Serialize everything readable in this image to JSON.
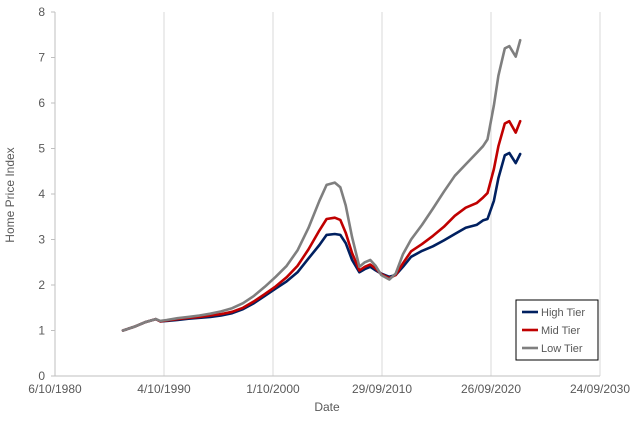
{
  "chart_data": {
    "type": "line",
    "title": "",
    "xlabel": "Date",
    "ylabel": "Home Price Index",
    "x_ticks": [
      "6/10/1980",
      "4/10/1990",
      "1/10/2000",
      "29/09/2010",
      "26/09/2020",
      "24/09/2030"
    ],
    "xlim": [
      "1980-10-06",
      "2030-09-24"
    ],
    "ylim": [
      0,
      8
    ],
    "y_ticks": [
      0,
      1,
      2,
      3,
      4,
      5,
      6,
      7,
      8
    ],
    "grid": "vertical",
    "legend_position": "bottom-right",
    "series": [
      {
        "name": "High Tier",
        "color": "#002060",
        "points": [
          [
            "1987-01",
            1.0
          ],
          [
            "1988-01",
            1.08
          ],
          [
            "1989-01",
            1.18
          ],
          [
            "1990-01",
            1.25
          ],
          [
            "1990-06",
            1.2
          ],
          [
            "1991-01",
            1.21
          ],
          [
            "1992-01",
            1.23
          ],
          [
            "1993-01",
            1.26
          ],
          [
            "1994-01",
            1.28
          ],
          [
            "1995-01",
            1.3
          ],
          [
            "1996-01",
            1.33
          ],
          [
            "1997-01",
            1.38
          ],
          [
            "1998-01",
            1.47
          ],
          [
            "1999-01",
            1.6
          ],
          [
            "2000-01",
            1.76
          ],
          [
            "2001-01",
            1.92
          ],
          [
            "2002-01",
            2.08
          ],
          [
            "2003-01",
            2.28
          ],
          [
            "2004-01",
            2.58
          ],
          [
            "2005-01",
            2.88
          ],
          [
            "2005-09",
            3.1
          ],
          [
            "2006-06",
            3.12
          ],
          [
            "2006-12",
            3.1
          ],
          [
            "2007-06",
            2.92
          ],
          [
            "2008-01",
            2.55
          ],
          [
            "2008-09",
            2.28
          ],
          [
            "2009-03",
            2.35
          ],
          [
            "2009-09",
            2.4
          ],
          [
            "2010-03",
            2.32
          ],
          [
            "2010-09",
            2.25
          ],
          [
            "2011-06",
            2.18
          ],
          [
            "2012-01",
            2.22
          ],
          [
            "2012-09",
            2.4
          ],
          [
            "2013-06",
            2.62
          ],
          [
            "2014-06",
            2.75
          ],
          [
            "2015-06",
            2.85
          ],
          [
            "2016-06",
            2.98
          ],
          [
            "2017-06",
            3.12
          ],
          [
            "2018-06",
            3.26
          ],
          [
            "2019-06",
            3.32
          ],
          [
            "2020-01",
            3.42
          ],
          [
            "2020-06",
            3.45
          ],
          [
            "2021-01",
            3.85
          ],
          [
            "2021-06",
            4.35
          ],
          [
            "2022-01",
            4.85
          ],
          [
            "2022-06",
            4.9
          ],
          [
            "2023-01",
            4.68
          ],
          [
            "2023-06",
            4.88
          ]
        ]
      },
      {
        "name": "Mid Tier",
        "color": "#C00000",
        "points": [
          [
            "1987-01",
            1.0
          ],
          [
            "1988-01",
            1.08
          ],
          [
            "1989-01",
            1.18
          ],
          [
            "1990-01",
            1.25
          ],
          [
            "1990-06",
            1.2
          ],
          [
            "1991-01",
            1.22
          ],
          [
            "1992-01",
            1.25
          ],
          [
            "1993-01",
            1.28
          ],
          [
            "1994-01",
            1.3
          ],
          [
            "1995-01",
            1.33
          ],
          [
            "1996-01",
            1.36
          ],
          [
            "1997-01",
            1.41
          ],
          [
            "1998-01",
            1.5
          ],
          [
            "1999-01",
            1.64
          ],
          [
            "2000-01",
            1.8
          ],
          [
            "2001-01",
            1.97
          ],
          [
            "2002-01",
            2.17
          ],
          [
            "2003-01",
            2.42
          ],
          [
            "2004-01",
            2.78
          ],
          [
            "2005-01",
            3.2
          ],
          [
            "2005-09",
            3.45
          ],
          [
            "2006-06",
            3.48
          ],
          [
            "2006-12",
            3.43
          ],
          [
            "2007-06",
            3.15
          ],
          [
            "2008-01",
            2.7
          ],
          [
            "2008-09",
            2.32
          ],
          [
            "2009-03",
            2.4
          ],
          [
            "2009-09",
            2.45
          ],
          [
            "2010-03",
            2.36
          ],
          [
            "2010-09",
            2.24
          ],
          [
            "2011-06",
            2.15
          ],
          [
            "2012-01",
            2.22
          ],
          [
            "2012-09",
            2.48
          ],
          [
            "2013-06",
            2.74
          ],
          [
            "2014-06",
            2.9
          ],
          [
            "2015-06",
            3.08
          ],
          [
            "2016-06",
            3.28
          ],
          [
            "2017-06",
            3.52
          ],
          [
            "2018-06",
            3.7
          ],
          [
            "2019-06",
            3.8
          ],
          [
            "2020-01",
            3.92
          ],
          [
            "2020-06",
            4.02
          ],
          [
            "2021-01",
            4.55
          ],
          [
            "2021-06",
            5.05
          ],
          [
            "2022-01",
            5.55
          ],
          [
            "2022-06",
            5.6
          ],
          [
            "2023-01",
            5.35
          ],
          [
            "2023-06",
            5.6
          ]
        ]
      },
      {
        "name": "Low Tier",
        "color": "#7F7F7F",
        "points": [
          [
            "1987-01",
            1.0
          ],
          [
            "1988-01",
            1.08
          ],
          [
            "1989-01",
            1.18
          ],
          [
            "1990-01",
            1.25
          ],
          [
            "1990-06",
            1.21
          ],
          [
            "1991-01",
            1.23
          ],
          [
            "1992-01",
            1.27
          ],
          [
            "1993-01",
            1.3
          ],
          [
            "1994-01",
            1.33
          ],
          [
            "1995-01",
            1.37
          ],
          [
            "1996-01",
            1.42
          ],
          [
            "1997-01",
            1.49
          ],
          [
            "1998-01",
            1.6
          ],
          [
            "1999-01",
            1.76
          ],
          [
            "2000-01",
            1.96
          ],
          [
            "2001-01",
            2.18
          ],
          [
            "2002-01",
            2.42
          ],
          [
            "2003-01",
            2.76
          ],
          [
            "2004-01",
            3.25
          ],
          [
            "2005-01",
            3.85
          ],
          [
            "2005-09",
            4.2
          ],
          [
            "2006-06",
            4.25
          ],
          [
            "2006-12",
            4.15
          ],
          [
            "2007-06",
            3.75
          ],
          [
            "2008-01",
            3.05
          ],
          [
            "2008-09",
            2.4
          ],
          [
            "2009-03",
            2.5
          ],
          [
            "2009-09",
            2.55
          ],
          [
            "2010-03",
            2.42
          ],
          [
            "2010-09",
            2.22
          ],
          [
            "2011-06",
            2.12
          ],
          [
            "2012-01",
            2.25
          ],
          [
            "2012-09",
            2.68
          ],
          [
            "2013-06",
            3.0
          ],
          [
            "2014-06",
            3.32
          ],
          [
            "2015-06",
            3.68
          ],
          [
            "2016-06",
            4.05
          ],
          [
            "2017-06",
            4.4
          ],
          [
            "2018-06",
            4.65
          ],
          [
            "2019-06",
            4.9
          ],
          [
            "2020-01",
            5.05
          ],
          [
            "2020-06",
            5.2
          ],
          [
            "2021-01",
            5.95
          ],
          [
            "2021-06",
            6.6
          ],
          [
            "2022-01",
            7.2
          ],
          [
            "2022-06",
            7.25
          ],
          [
            "2023-01",
            7.02
          ],
          [
            "2023-06",
            7.38
          ]
        ]
      }
    ]
  }
}
